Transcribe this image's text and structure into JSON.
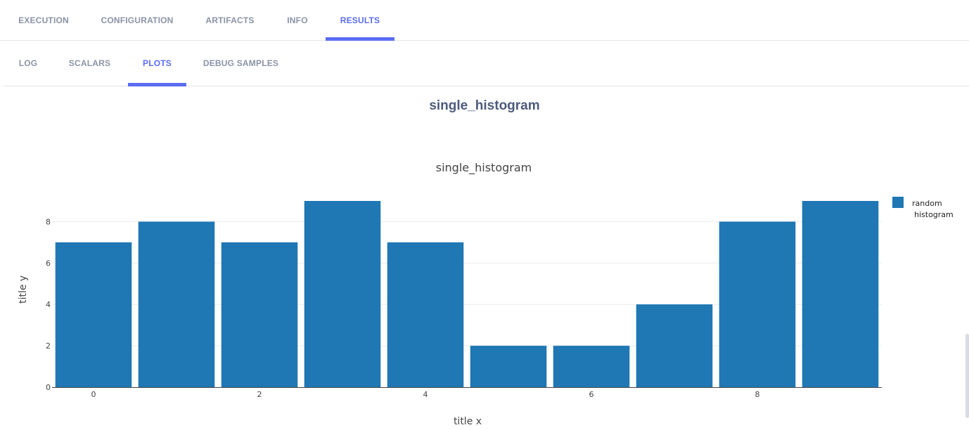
{
  "main_tabs": [
    {
      "label": "EXECUTION",
      "active": false
    },
    {
      "label": "CONFIGURATION",
      "active": false
    },
    {
      "label": "ARTIFACTS",
      "active": false
    },
    {
      "label": "INFO",
      "active": false
    },
    {
      "label": "RESULTS",
      "active": true
    }
  ],
  "sub_tabs": [
    {
      "label": "LOG",
      "active": false
    },
    {
      "label": "SCALARS",
      "active": false
    },
    {
      "label": "PLOTS",
      "active": true
    },
    {
      "label": "DEBUG SAMPLES",
      "active": false
    }
  ],
  "plot_section_title": "single_histogram",
  "colors": {
    "accent": "#5a6cf3",
    "bar": "#1f77b4",
    "tab_text": "#8a93a6"
  },
  "chart_data": {
    "type": "bar",
    "title": "single_histogram",
    "xlabel": "title x",
    "ylabel": "title y",
    "x": [
      0,
      1,
      2,
      3,
      4,
      5,
      6,
      7,
      8,
      9
    ],
    "series": [
      {
        "name": "random histogram",
        "values": [
          7,
          8,
          7,
          9,
          7,
          2,
          2,
          4,
          8,
          9
        ]
      }
    ],
    "xlim": [
      -0.5,
      9.5
    ],
    "ylim": [
      0,
      9
    ],
    "x_ticks": [
      0,
      2,
      4,
      6,
      8
    ],
    "y_ticks": [
      0,
      2,
      4,
      6,
      8
    ],
    "grid": true,
    "legend": "top-right"
  }
}
